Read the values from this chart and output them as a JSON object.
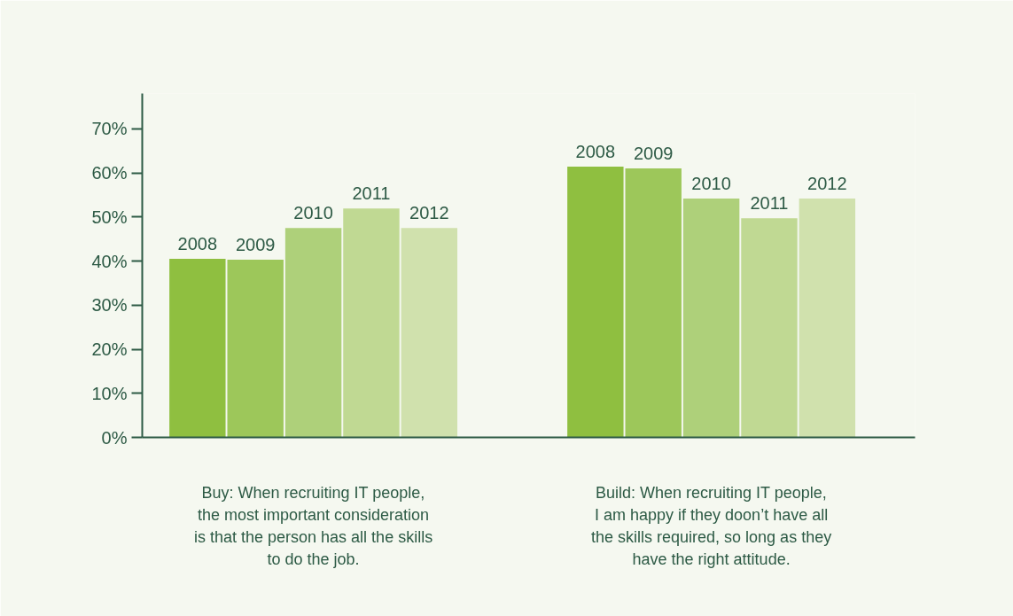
{
  "chart_data": {
    "type": "bar",
    "categories": [
      "Buy: When recruiting IT people,\nthe most important consideration\nis that the person has all the skills\nto do the job.",
      "Build: When recruiting IT people,\nI am happy if they doon’t have all\nthe skills required, so long as they\nhave the right attitude."
    ],
    "series": [
      {
        "name": "2008",
        "color": "#8fbf40",
        "values": [
          40.5,
          61.4
        ]
      },
      {
        "name": "2009",
        "color": "#9dc75a",
        "values": [
          40.3,
          61.0
        ]
      },
      {
        "name": "2010",
        "color": "#aed07a",
        "values": [
          47.5,
          54.2
        ]
      },
      {
        "name": "2011",
        "color": "#c0d993",
        "values": [
          51.9,
          49.7
        ]
      },
      {
        "name": "2012",
        "color": "#d0e1ad",
        "values": [
          47.5,
          54.2
        ]
      }
    ],
    "ylim": [
      0,
      78
    ],
    "yticks": [
      {
        "value": 0,
        "label": "0%"
      },
      {
        "value": 10,
        "label": "10%"
      },
      {
        "value": 20,
        "label": "20%"
      },
      {
        "value": 30,
        "label": "30%"
      },
      {
        "value": 40,
        "label": "40%"
      },
      {
        "value": 50,
        "label": "50%"
      },
      {
        "value": 60,
        "label": "60%"
      },
      {
        "value": 70,
        "label": "70%"
      }
    ],
    "grid": false,
    "legend": false
  }
}
